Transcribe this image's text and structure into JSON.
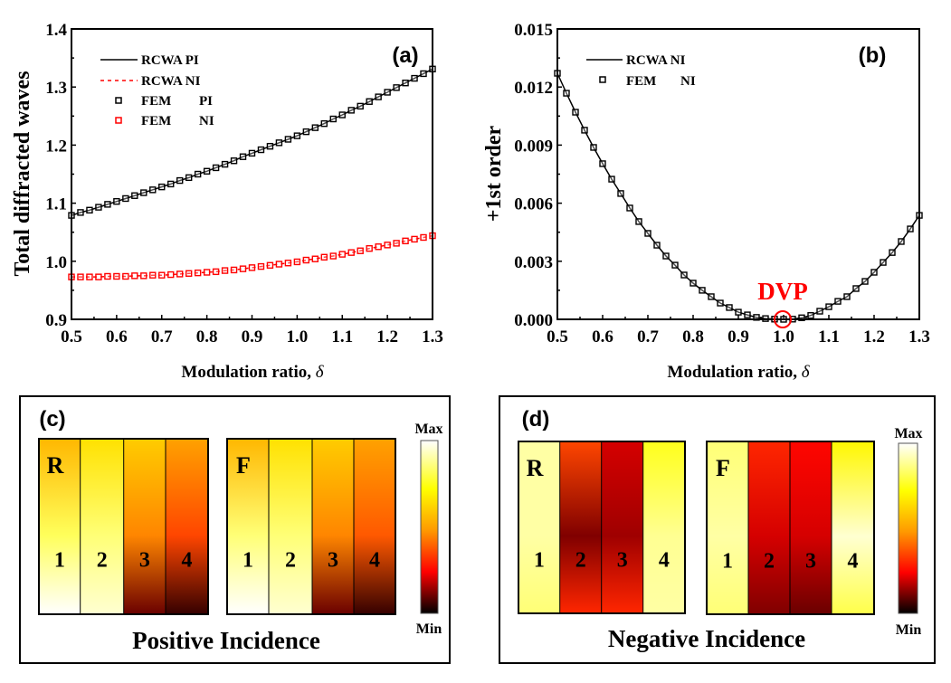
{
  "chart_data": [
    {
      "id": "a",
      "type": "line",
      "panel_label": "(a)",
      "title": "",
      "xlabel": "Modulation ratio, ",
      "xlabel_symbol": "δ",
      "ylabel": "Total diffracted waves",
      "xlim": [
        0.5,
        1.3
      ],
      "ylim": [
        0.9,
        1.4
      ],
      "xticks": [
        "0.5",
        "0.6",
        "0.7",
        "0.8",
        "0.9",
        "1.0",
        "1.1",
        "1.2",
        "1.3"
      ],
      "yticks": [
        "0.9",
        "1.0",
        "1.1",
        "1.2",
        "1.3",
        "1.4"
      ],
      "xtick_values": [
        0.5,
        0.6,
        0.7,
        0.8,
        0.9,
        1.0,
        1.1,
        1.2,
        1.3
      ],
      "ytick_values": [
        0.9,
        1.0,
        1.1,
        1.2,
        1.3,
        1.4
      ],
      "grid": false,
      "legend_position": "top-left",
      "x": [
        0.5,
        0.52,
        0.54,
        0.56,
        0.58,
        0.6,
        0.62,
        0.64,
        0.66,
        0.68,
        0.7,
        0.72,
        0.74,
        0.76,
        0.78,
        0.8,
        0.82,
        0.84,
        0.86,
        0.88,
        0.9,
        0.92,
        0.94,
        0.96,
        0.98,
        1.0,
        1.02,
        1.04,
        1.06,
        1.08,
        1.1,
        1.12,
        1.14,
        1.16,
        1.18,
        1.2,
        1.22,
        1.24,
        1.26,
        1.28,
        1.3
      ],
      "series": [
        {
          "name": "RCWA PI",
          "legend_label": "RCWA PI",
          "style": "solid-line",
          "color": "#000000",
          "values": [
            1.079,
            1.084,
            1.088,
            1.093,
            1.098,
            1.103,
            1.108,
            1.113,
            1.118,
            1.123,
            1.128,
            1.133,
            1.139,
            1.144,
            1.15,
            1.155,
            1.161,
            1.167,
            1.173,
            1.18,
            1.186,
            1.192,
            1.198,
            1.204,
            1.21,
            1.216,
            1.223,
            1.23,
            1.237,
            1.245,
            1.252,
            1.26,
            1.267,
            1.275,
            1.283,
            1.291,
            1.299,
            1.307,
            1.315,
            1.323,
            1.331
          ]
        },
        {
          "name": "RCWA NI",
          "legend_label": "RCWA NI",
          "style": "dashed-line",
          "color": "#ff0000",
          "values": [
            0.973,
            0.973,
            0.973,
            0.973,
            0.974,
            0.974,
            0.974,
            0.975,
            0.975,
            0.976,
            0.976,
            0.977,
            0.978,
            0.979,
            0.98,
            0.981,
            0.982,
            0.984,
            0.985,
            0.987,
            0.989,
            0.991,
            0.993,
            0.995,
            0.997,
            0.999,
            1.002,
            1.004,
            1.007,
            1.009,
            1.012,
            1.015,
            1.018,
            1.022,
            1.025,
            1.028,
            1.031,
            1.035,
            1.038,
            1.041,
            1.044
          ]
        },
        {
          "name": "FEM PI",
          "legend_label_left": "FEM",
          "legend_label_right": "PI",
          "style": "square-marker",
          "color": "#000000",
          "values": [
            1.079,
            1.084,
            1.088,
            1.093,
            1.098,
            1.103,
            1.108,
            1.113,
            1.118,
            1.123,
            1.128,
            1.133,
            1.139,
            1.144,
            1.15,
            1.155,
            1.161,
            1.167,
            1.173,
            1.18,
            1.186,
            1.192,
            1.198,
            1.204,
            1.21,
            1.216,
            1.223,
            1.23,
            1.237,
            1.245,
            1.252,
            1.26,
            1.267,
            1.275,
            1.283,
            1.291,
            1.299,
            1.307,
            1.315,
            1.323,
            1.331
          ]
        },
        {
          "name": "FEM NI",
          "legend_label_left": "FEM",
          "legend_label_right": "NI",
          "style": "square-marker",
          "color": "#ff0000",
          "values": [
            0.973,
            0.973,
            0.973,
            0.973,
            0.974,
            0.974,
            0.974,
            0.975,
            0.975,
            0.976,
            0.976,
            0.977,
            0.978,
            0.979,
            0.98,
            0.981,
            0.982,
            0.984,
            0.985,
            0.987,
            0.989,
            0.991,
            0.993,
            0.995,
            0.997,
            0.999,
            1.002,
            1.004,
            1.007,
            1.009,
            1.012,
            1.015,
            1.018,
            1.022,
            1.025,
            1.028,
            1.031,
            1.035,
            1.038,
            1.041,
            1.044
          ]
        }
      ]
    },
    {
      "id": "b",
      "type": "line",
      "panel_label": "(b)",
      "title": "",
      "xlabel": "Modulation ratio, ",
      "xlabel_symbol": "δ",
      "ylabel": "+1st order",
      "xlim": [
        0.5,
        1.3
      ],
      "ylim": [
        0.0,
        0.015
      ],
      "xticks": [
        "0.5",
        "0.6",
        "0.7",
        "0.8",
        "0.9",
        "1.0",
        "1.1",
        "1.2",
        "1.3"
      ],
      "yticks": [
        "0.000",
        "0.003",
        "0.006",
        "0.009",
        "0.012",
        "0.015"
      ],
      "xtick_values": [
        0.5,
        0.6,
        0.7,
        0.8,
        0.9,
        1.0,
        1.1,
        1.2,
        1.3
      ],
      "ytick_values": [
        0.0,
        0.003,
        0.006,
        0.009,
        0.012,
        0.015
      ],
      "grid": false,
      "legend_position": "top-left",
      "annotation": {
        "text": "DVP",
        "x": 1.0,
        "y": 0.0,
        "color": "#ff0000",
        "marker": "circle"
      },
      "x": [
        0.5,
        0.52,
        0.54,
        0.56,
        0.58,
        0.6,
        0.62,
        0.64,
        0.66,
        0.68,
        0.7,
        0.72,
        0.74,
        0.76,
        0.78,
        0.8,
        0.82,
        0.84,
        0.86,
        0.88,
        0.9,
        0.92,
        0.94,
        0.96,
        0.98,
        1.0,
        1.02,
        1.04,
        1.06,
        1.08,
        1.1,
        1.12,
        1.14,
        1.16,
        1.18,
        1.2,
        1.22,
        1.24,
        1.26,
        1.28,
        1.3
      ],
      "series": [
        {
          "name": "RCWA NI",
          "legend_label": "RCWA NI",
          "style": "solid-line",
          "color": "#000000",
          "values": [
            0.01271,
            0.01168,
            0.0107,
            0.00977,
            0.00888,
            0.00804,
            0.00724,
            0.0065,
            0.00575,
            0.00505,
            0.00444,
            0.00383,
            0.00327,
            0.0028,
            0.00229,
            0.00187,
            0.0015,
            0.00117,
            0.00084,
            0.00061,
            0.00037,
            0.00023,
            0.0001,
            4e-05,
            1e-05,
            0.0,
            1e-05,
            8e-05,
            0.0002,
            0.00042,
            0.00065,
            0.00093,
            0.00117,
            0.00159,
            0.00196,
            0.00243,
            0.00294,
            0.00345,
            0.00402,
            0.00467,
            0.00537
          ]
        },
        {
          "name": "FEM NI",
          "legend_label_left": "FEM",
          "legend_label_right": "NI",
          "style": "square-marker",
          "color": "#000000",
          "values": [
            0.01271,
            0.01168,
            0.0107,
            0.00977,
            0.00888,
            0.00804,
            0.00724,
            0.0065,
            0.00575,
            0.00505,
            0.00444,
            0.00383,
            0.00327,
            0.0028,
            0.00229,
            0.00187,
            0.0015,
            0.00117,
            0.00084,
            0.00061,
            0.00037,
            0.00023,
            0.0001,
            4e-05,
            1e-05,
            0.0,
            1e-05,
            8e-05,
            0.0002,
            0.00042,
            0.00065,
            0.00093,
            0.00117,
            0.00159,
            0.00196,
            0.00243,
            0.00294,
            0.00345,
            0.00402,
            0.00467,
            0.00537
          ]
        }
      ]
    },
    {
      "id": "c",
      "type": "heatmap",
      "panel_label": "(c)",
      "caption": "Positive Incidence",
      "colorbar": {
        "max_label": "Max",
        "min_label": "Min",
        "colormap": [
          "#000000",
          "#8b0000",
          "#ff0000",
          "#ff8c00",
          "#ffff00",
          "#ffffff"
        ]
      },
      "maps": [
        {
          "label": "R",
          "columns": [
            "1",
            "2",
            "3",
            "4"
          ],
          "column_profiles": [
            {
              "top": 0.55,
              "mid": 0.82,
              "bottom": 1.0
            },
            {
              "top": 0.65,
              "mid": 0.85,
              "bottom": 0.95
            },
            {
              "top": 0.6,
              "mid": 0.45,
              "bottom": 0.1
            },
            {
              "top": 0.5,
              "mid": 0.35,
              "bottom": 0.05
            }
          ]
        },
        {
          "label": "F",
          "columns": [
            "1",
            "2",
            "3",
            "4"
          ],
          "column_profiles": [
            {
              "top": 0.55,
              "mid": 0.85,
              "bottom": 1.0
            },
            {
              "top": 0.65,
              "mid": 0.85,
              "bottom": 0.95
            },
            {
              "top": 0.6,
              "mid": 0.45,
              "bottom": 0.1
            },
            {
              "top": 0.5,
              "mid": 0.38,
              "bottom": 0.05
            }
          ]
        }
      ]
    },
    {
      "id": "d",
      "type": "heatmap",
      "panel_label": "(d)",
      "caption": "Negative Incidence",
      "colorbar": {
        "max_label": "Max",
        "min_label": "Min",
        "colormap": [
          "#000000",
          "#8b0000",
          "#ff0000",
          "#ff8c00",
          "#ffff00",
          "#ffffff"
        ]
      },
      "maps": [
        {
          "label": "R",
          "columns": [
            "1",
            "2",
            "3",
            "4"
          ],
          "column_profiles": [
            {
              "top": 0.9,
              "mid": 0.9,
              "bottom": 0.85
            },
            {
              "top": 0.35,
              "mid": 0.12,
              "bottom": 0.3
            },
            {
              "top": 0.2,
              "mid": 0.15,
              "bottom": 0.3
            },
            {
              "top": 0.75,
              "mid": 0.88,
              "bottom": 0.9
            }
          ]
        },
        {
          "label": "F",
          "columns": [
            "1",
            "2",
            "3",
            "4"
          ],
          "column_profiles": [
            {
              "top": 0.85,
              "mid": 0.9,
              "bottom": 0.85
            },
            {
              "top": 0.3,
              "mid": 0.2,
              "bottom": 0.12
            },
            {
              "top": 0.25,
              "mid": 0.2,
              "bottom": 0.1
            },
            {
              "top": 0.7,
              "mid": 0.95,
              "bottom": 0.8
            }
          ]
        }
      ]
    }
  ]
}
